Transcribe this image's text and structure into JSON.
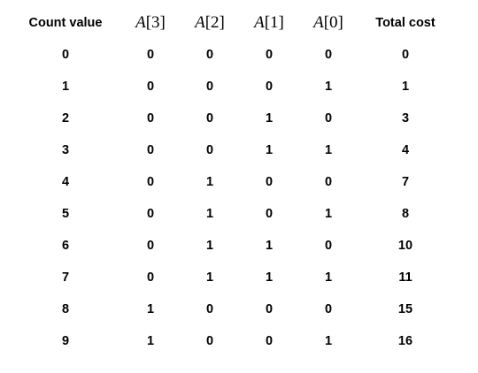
{
  "table": {
    "headers": {
      "count": "Count value",
      "bits": [
        {
          "var": "A",
          "index": "[3]"
        },
        {
          "var": "A",
          "index": "[2]"
        },
        {
          "var": "A",
          "index": "[1]"
        },
        {
          "var": "A",
          "index": "[0]"
        }
      ],
      "total": "Total cost"
    },
    "rows": [
      {
        "count": "0",
        "a3": "0",
        "a2": "0",
        "a1": "0",
        "a0": "0",
        "total": "0"
      },
      {
        "count": "1",
        "a3": "0",
        "a2": "0",
        "a1": "0",
        "a0": "1",
        "total": "1"
      },
      {
        "count": "2",
        "a3": "0",
        "a2": "0",
        "a1": "1",
        "a0": "0",
        "total": "3"
      },
      {
        "count": "3",
        "a3": "0",
        "a2": "0",
        "a1": "1",
        "a0": "1",
        "total": "4"
      },
      {
        "count": "4",
        "a3": "0",
        "a2": "1",
        "a1": "0",
        "a0": "0",
        "total": "7"
      },
      {
        "count": "5",
        "a3": "0",
        "a2": "1",
        "a1": "0",
        "a0": "1",
        "total": "8"
      },
      {
        "count": "6",
        "a3": "0",
        "a2": "1",
        "a1": "1",
        "a0": "0",
        "total": "10"
      },
      {
        "count": "7",
        "a3": "0",
        "a2": "1",
        "a1": "1",
        "a0": "1",
        "total": "11"
      },
      {
        "count": "8",
        "a3": "1",
        "a2": "0",
        "a1": "0",
        "a0": "0",
        "total": "15"
      },
      {
        "count": "9",
        "a3": "1",
        "a2": "0",
        "a1": "0",
        "a0": "1",
        "total": "16"
      }
    ]
  }
}
